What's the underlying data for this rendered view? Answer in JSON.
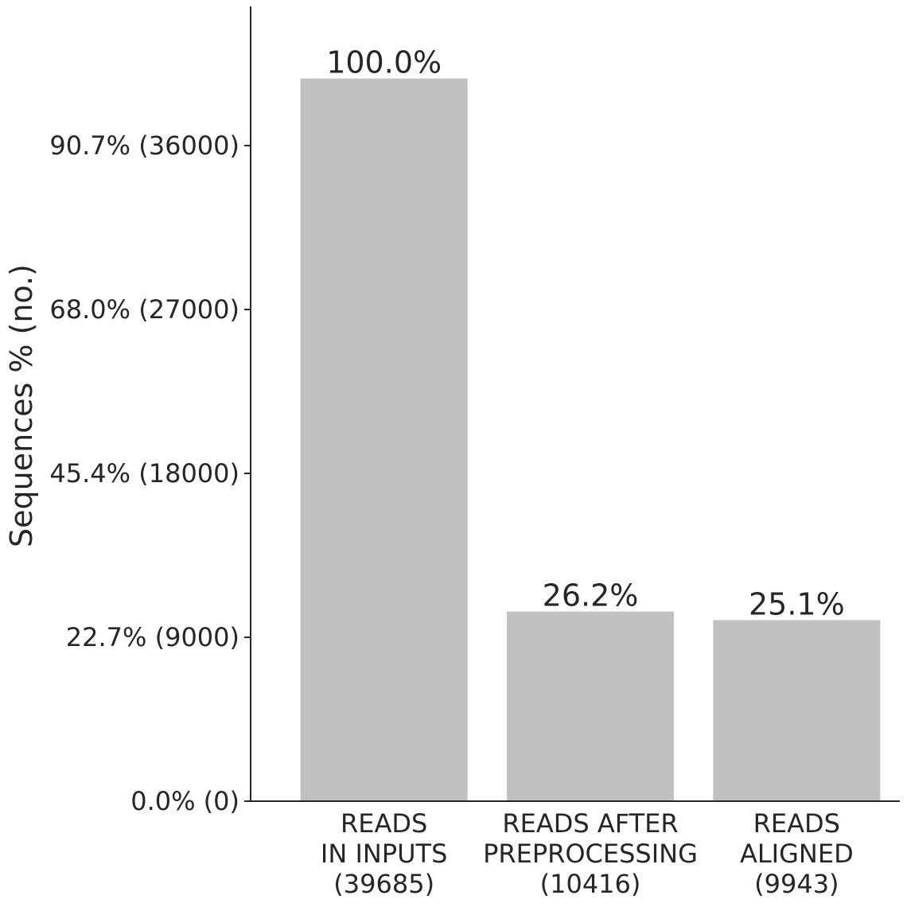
{
  "chart_data": {
    "type": "bar",
    "ylabel": "Sequences % (no.)",
    "xlabel": "",
    "total": 39685,
    "ylim": [
      0,
      44000
    ],
    "yticks": [
      {
        "value": 0,
        "label": "0.0% (0)"
      },
      {
        "value": 9000,
        "label": "22.7% (9000)"
      },
      {
        "value": 18000,
        "label": "45.4% (18000)"
      },
      {
        "value": 27000,
        "label": "68.0% (27000)"
      },
      {
        "value": 36000,
        "label": "90.7% (36000)"
      }
    ],
    "categories": [
      [
        "READS",
        "IN INPUTS",
        "(39685)"
      ],
      [
        "READS AFTER",
        "PREPROCESSING",
        "(10416)"
      ],
      [
        "READS",
        "ALIGNED",
        "(9943)"
      ]
    ],
    "values": [
      39685,
      10416,
      9943
    ],
    "data_labels": [
      "100.0%",
      "26.2%",
      "25.1%"
    ],
    "bar_color": "#c0c0c0",
    "axis_color": "#262626",
    "grid": false,
    "legend": "none"
  }
}
